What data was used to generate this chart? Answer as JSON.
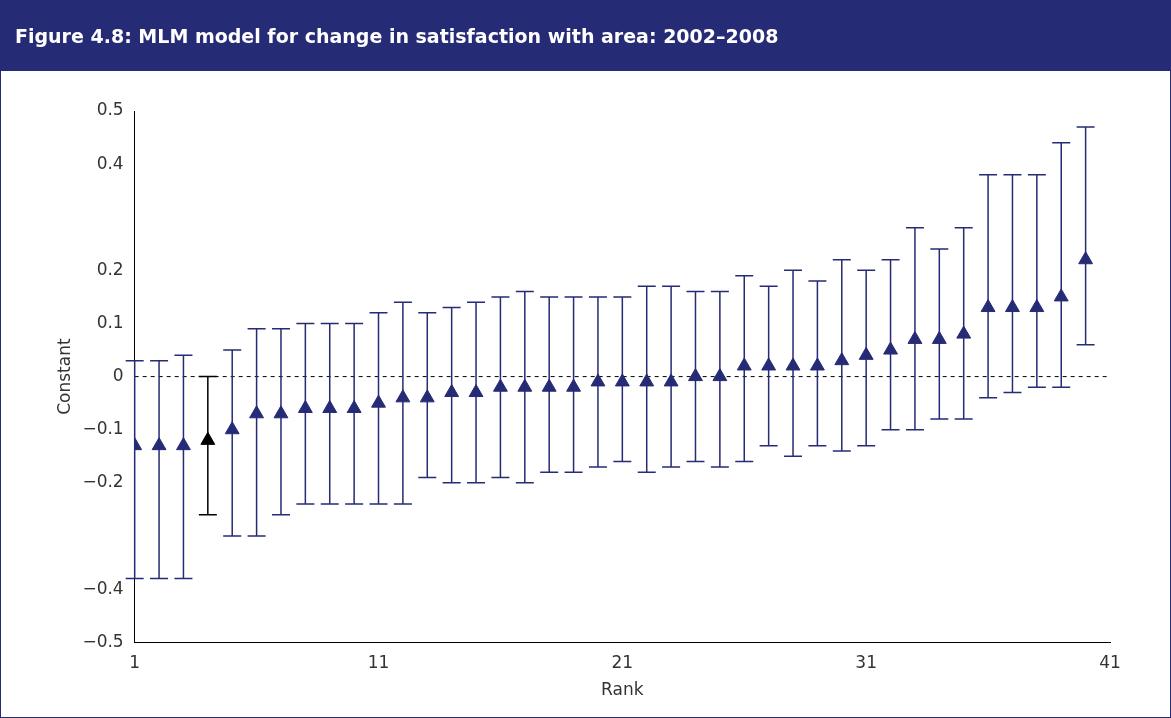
{
  "chart_data": {
    "type": "scatter",
    "title": "Figure 4.8: MLM model for change in satisfaction with area: 2002–2008",
    "xlabel": "Rank",
    "ylabel": "Constant",
    "x": [
      1,
      2,
      3,
      4,
      5,
      6,
      7,
      8,
      9,
      10,
      11,
      12,
      13,
      14,
      15,
      16,
      17,
      18,
      19,
      20,
      21,
      22,
      23,
      24,
      25,
      26,
      27,
      28,
      29,
      30,
      31,
      32,
      33,
      34,
      35,
      36,
      37,
      38,
      39,
      40
    ],
    "xlim": [
      1,
      41
    ],
    "xticks": [
      1,
      11,
      21,
      31,
      41
    ],
    "ylim": [
      -0.5,
      0.5
    ],
    "yticks": [
      {
        "value": -0.5,
        "label": "−0.5"
      },
      {
        "value": -0.4,
        "label": "−0.4"
      },
      {
        "value": -0.2,
        "label": "−0.2"
      },
      {
        "value": -0.1,
        "label": "−0.1"
      },
      0,
      0.1,
      0.2,
      0.4,
      0.5
    ],
    "marker": "triangle",
    "grid": false,
    "legend": false,
    "ref_lines": [
      {
        "axis": "y",
        "value": 0,
        "line_style": "dashed",
        "color": "#000000"
      }
    ],
    "series": [
      {
        "colors": [
          "#262b76",
          "#262b76",
          "#262b76",
          "#000000",
          "#262b76",
          "#262b76",
          "#262b76",
          "#262b76",
          "#262b76",
          "#262b76",
          "#262b76",
          "#262b76",
          "#262b76",
          "#262b76",
          "#262b76",
          "#262b76",
          "#262b76",
          "#262b76",
          "#262b76",
          "#262b76",
          "#262b76",
          "#262b76",
          "#262b76",
          "#262b76",
          "#262b76",
          "#262b76",
          "#262b76",
          "#262b76",
          "#262b76",
          "#262b76",
          "#262b76",
          "#262b76",
          "#262b76",
          "#262b76",
          "#262b76",
          "#262b76",
          "#262b76",
          "#262b76",
          "#262b76",
          "#262b76"
        ],
        "values": [
          -0.13,
          -0.13,
          -0.13,
          -0.12,
          -0.1,
          -0.07,
          -0.07,
          -0.06,
          -0.06,
          -0.06,
          -0.05,
          -0.04,
          -0.04,
          -0.03,
          -0.03,
          -0.02,
          -0.02,
          -0.02,
          -0.02,
          -0.01,
          -0.01,
          -0.01,
          -0.01,
          0.0,
          0.0,
          0.02,
          0.02,
          0.02,
          0.02,
          0.03,
          0.04,
          0.05,
          0.07,
          0.07,
          0.08,
          0.13,
          0.13,
          0.13,
          0.15,
          0.22
        ],
        "errors": [
          [
            -0.38,
            0.03
          ],
          [
            -0.38,
            0.03
          ],
          [
            -0.38,
            0.04
          ],
          [
            -0.26,
            0.0
          ],
          [
            -0.3,
            0.05
          ],
          [
            -0.3,
            0.09
          ],
          [
            -0.26,
            0.09
          ],
          [
            -0.24,
            0.1
          ],
          [
            -0.24,
            0.1
          ],
          [
            -0.24,
            0.1
          ],
          [
            -0.24,
            0.12
          ],
          [
            -0.24,
            0.14
          ],
          [
            -0.19,
            0.12
          ],
          [
            -0.2,
            0.13
          ],
          [
            -0.2,
            0.14
          ],
          [
            -0.19,
            0.15
          ],
          [
            -0.2,
            0.16
          ],
          [
            -0.18,
            0.15
          ],
          [
            -0.18,
            0.15
          ],
          [
            -0.17,
            0.15
          ],
          [
            -0.16,
            0.15
          ],
          [
            -0.18,
            0.17
          ],
          [
            -0.17,
            0.17
          ],
          [
            -0.16,
            0.16
          ],
          [
            -0.17,
            0.16
          ],
          [
            -0.16,
            0.19
          ],
          [
            -0.13,
            0.17
          ],
          [
            -0.15,
            0.2
          ],
          [
            -0.13,
            0.18
          ],
          [
            -0.14,
            0.22
          ],
          [
            -0.13,
            0.2
          ],
          [
            -0.1,
            0.22
          ],
          [
            -0.1,
            0.28
          ],
          [
            -0.08,
            0.24
          ],
          [
            -0.08,
            0.28
          ],
          [
            -0.04,
            0.38
          ],
          [
            -0.03,
            0.38
          ],
          [
            -0.02,
            0.38
          ],
          [
            -0.02,
            0.44
          ],
          [
            0.06,
            0.47
          ]
        ]
      }
    ]
  }
}
